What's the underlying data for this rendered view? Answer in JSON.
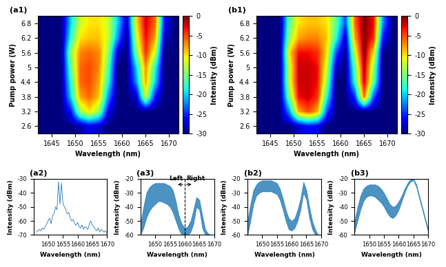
{
  "chart_data": [
    {
      "type": "heatmap",
      "title": "(a1)",
      "x_label": "Wavelength (nm)",
      "y_label": "Pump power (W)",
      "x": [
        1643,
        1645,
        1647,
        1649,
        1651,
        1653,
        1655,
        1657,
        1659,
        1661,
        1663,
        1665,
        1667,
        1669,
        1671
      ],
      "y": [
        2.6,
        3.2,
        3.8,
        4.4,
        5,
        5.6,
        6.2,
        6.8
      ],
      "xlim": [
        1642,
        1672
      ],
      "ylim": [
        2.3,
        7.1
      ],
      "xticks": [
        1645,
        1650,
        1655,
        1660,
        1665,
        1670
      ],
      "yticks": [
        2.6,
        3.2,
        3.8,
        4.4,
        5,
        5.6,
        6.2,
        6.8
      ],
      "cells": [
        [
          -30,
          -30,
          -30,
          -30,
          -29,
          -27,
          -28,
          -30,
          -30,
          -30,
          -30,
          -30,
          -30,
          -30,
          -30
        ],
        [
          -30,
          -30,
          -30,
          -26,
          -14,
          -10,
          -14,
          -27,
          -30,
          -30,
          -30,
          -30,
          -30,
          -30,
          -30
        ],
        [
          -30,
          -30,
          -30,
          -20,
          -8,
          -6,
          -9,
          -22,
          -30,
          -30,
          -28,
          -12,
          -26,
          -30,
          -30
        ],
        [
          -30,
          -30,
          -30,
          -18,
          -6,
          -5,
          -8,
          -18,
          -30,
          -30,
          -22,
          -8,
          -20,
          -30,
          -30
        ],
        [
          -30,
          -30,
          -30,
          -16,
          -6,
          -5,
          -7,
          -16,
          -30,
          -30,
          -20,
          -7,
          -18,
          -30,
          -30
        ],
        [
          -30,
          -30,
          -30,
          -14,
          -7,
          -6,
          -7,
          -14,
          -28,
          -30,
          -15,
          -4,
          -12,
          -30,
          -30
        ],
        [
          -30,
          -30,
          -30,
          -18,
          -10,
          -9,
          -9,
          -12,
          -22,
          -30,
          -12,
          -3,
          -8,
          -28,
          -30
        ],
        [
          -30,
          -30,
          -30,
          -20,
          -12,
          -10,
          -10,
          -12,
          -20,
          -28,
          -10,
          -2,
          -6,
          -26,
          -30
        ]
      ],
      "colorbar": {
        "label": "Intensity (dBm)",
        "range": [
          -30,
          0
        ],
        "ticks": [
          -30,
          -25,
          -20,
          -15,
          -10,
          -5,
          0
        ]
      }
    },
    {
      "type": "heatmap",
      "title": "(b1)",
      "x_label": "Wavelength (nm)",
      "y_label": "Pump power (W)",
      "x": [
        1643,
        1645,
        1647,
        1649,
        1651,
        1653,
        1655,
        1657,
        1659,
        1661,
        1663,
        1665,
        1667,
        1669,
        1671
      ],
      "y": [
        2.6,
        3.2,
        3.8,
        4.4,
        5,
        5.6,
        6.2,
        6.8
      ],
      "xlim": [
        1642,
        1672
      ],
      "ylim": [
        2.3,
        7.1
      ],
      "xticks": [
        1645,
        1650,
        1655,
        1660,
        1665,
        1670
      ],
      "yticks": [
        2.6,
        3.2,
        3.8,
        4.4,
        5,
        5.6,
        6.2,
        6.8
      ],
      "cells": [
        [
          -30,
          -30,
          -30,
          -30,
          -28,
          -26,
          -27,
          -30,
          -30,
          -30,
          -30,
          -30,
          -30,
          -30,
          -30
        ],
        [
          -30,
          -30,
          -30,
          -22,
          -8,
          -5,
          -8,
          -24,
          -30,
          -30,
          -30,
          -30,
          -30,
          -30,
          -30
        ],
        [
          -30,
          -30,
          -30,
          -15,
          -3,
          -2,
          -4,
          -18,
          -30,
          -30,
          -25,
          -6,
          -24,
          -30,
          -30
        ],
        [
          -30,
          -30,
          -30,
          -12,
          -2,
          -2,
          -3,
          -14,
          -30,
          -30,
          -18,
          -2,
          -16,
          -30,
          -30
        ],
        [
          -30,
          -30,
          -30,
          -12,
          -2,
          -2,
          -3,
          -12,
          -28,
          -30,
          -16,
          -1,
          -14,
          -30,
          -30
        ],
        [
          -30,
          -30,
          -30,
          -10,
          -3,
          -3,
          -4,
          -10,
          -24,
          -30,
          -12,
          0,
          -10,
          -30,
          -30
        ],
        [
          -30,
          -30,
          -30,
          -14,
          -8,
          -7,
          -7,
          -9,
          -18,
          -28,
          -8,
          0,
          -4,
          -26,
          -30
        ],
        [
          -30,
          -30,
          -30,
          -16,
          -10,
          -9,
          -9,
          -10,
          -16,
          -24,
          -6,
          0,
          -3,
          -22,
          -30
        ]
      ],
      "colorbar": {
        "label": "Intensity (dBm)",
        "range": [
          -30,
          0
        ],
        "ticks": [
          -30,
          -25,
          -20,
          -15,
          -10,
          -5,
          0
        ]
      }
    },
    {
      "type": "line",
      "title": "(a2)",
      "x_label": "Wavelength (nm)",
      "y_label": "Intensity (dBm)",
      "color": "#1f77b4",
      "x": [
        1646,
        1646.5,
        1647,
        1647.5,
        1648,
        1648.5,
        1649,
        1649.5,
        1650,
        1650.5,
        1651,
        1651.5,
        1652,
        1652.5,
        1653,
        1653.5,
        1654,
        1654.5,
        1655,
        1655.5,
        1656,
        1656.5,
        1657,
        1657.5,
        1658,
        1658.5,
        1659,
        1659.5,
        1660,
        1660.5,
        1661,
        1661.5,
        1662,
        1662.5,
        1663,
        1663.5,
        1664,
        1664.5,
        1665,
        1665.5,
        1666,
        1666.5,
        1667,
        1667.5,
        1668,
        1668.5,
        1669,
        1669.5,
        1670
      ],
      "values": [
        -68,
        -67,
        -66,
        -67,
        -65,
        -66,
        -64,
        -62,
        -60,
        -58,
        -62,
        -56,
        -55,
        -50,
        -52,
        -32,
        -48,
        -33,
        -47,
        -50,
        -52,
        -55,
        -54,
        -58,
        -60,
        -59,
        -62,
        -63,
        -61,
        -64,
        -65,
        -63,
        -66,
        -64,
        -65,
        -66,
        -62,
        -60,
        -63,
        -64,
        -66,
        -67,
        -65,
        -68,
        -66,
        -67,
        -68,
        -67,
        -69
      ],
      "xlim": [
        1645,
        1670
      ],
      "ylim": [
        -70,
        -30
      ],
      "xticks": [
        1650,
        1655,
        1660,
        1665,
        1670
      ],
      "yticks": [
        -70,
        -60,
        -50,
        -40,
        -30
      ]
    },
    {
      "type": "band",
      "title": "(a3)",
      "x_label": "Wavelength (nm)",
      "y_label": "Intensity (dBm)",
      "color": "#1f77b4",
      "x": [
        1645,
        1646,
        1647,
        1648,
        1649,
        1650,
        1651,
        1652,
        1653,
        1654,
        1655,
        1656,
        1657,
        1658,
        1659,
        1660,
        1661,
        1662,
        1663,
        1664,
        1665,
        1666,
        1667,
        1668,
        1669,
        1670
      ],
      "values_low": [
        -60,
        -55,
        -48,
        -43,
        -40,
        -38,
        -36,
        -36,
        -37,
        -38,
        -40,
        -44,
        -50,
        -56,
        -60,
        -60,
        -60,
        -58,
        -52,
        -40,
        -42,
        -55,
        -60,
        -60,
        -60,
        -60
      ],
      "values_high": [
        -52,
        -40,
        -30,
        -26,
        -24,
        -23,
        -23,
        -23,
        -23,
        -24,
        -25,
        -28,
        -36,
        -46,
        -52,
        -55,
        -54,
        -50,
        -42,
        -33,
        -35,
        -46,
        -56,
        -59,
        -60,
        -60
      ],
      "divider": 1660,
      "annotations": [
        "Left",
        "Right"
      ],
      "xlim": [
        1645,
        1670
      ],
      "ylim": [
        -60,
        -20
      ],
      "xticks": [
        1650,
        1655,
        1660,
        1665,
        1670
      ],
      "yticks": [
        -60,
        -50,
        -40,
        -30,
        -20
      ]
    },
    {
      "type": "band",
      "title": "(b2)",
      "x_label": "Wavelength (nm)",
      "y_label": "Intensity (dBm)",
      "color": "#1f77b4",
      "x": [
        1645,
        1646,
        1647,
        1648,
        1649,
        1650,
        1651,
        1652,
        1653,
        1654,
        1655,
        1656,
        1657,
        1658,
        1659,
        1660,
        1661,
        1662,
        1663,
        1664,
        1665,
        1666,
        1667,
        1668,
        1669,
        1670
      ],
      "values_low": [
        -60,
        -50,
        -38,
        -32,
        -30,
        -29,
        -29,
        -29,
        -29,
        -30,
        -31,
        -35,
        -42,
        -50,
        -56,
        -57,
        -55,
        -50,
        -42,
        -30,
        -35,
        -48,
        -56,
        -60,
        -60,
        -60
      ],
      "values_high": [
        -50,
        -38,
        -28,
        -24,
        -22,
        -21,
        -21,
        -21,
        -21,
        -22,
        -23,
        -27,
        -34,
        -42,
        -48,
        -50,
        -48,
        -42,
        -34,
        -22,
        -28,
        -40,
        -50,
        -56,
        -60,
        -60
      ],
      "xlim": [
        1645,
        1670
      ],
      "ylim": [
        -60,
        -20
      ],
      "xticks": [
        1650,
        1655,
        1660,
        1665,
        1670
      ],
      "yticks": [
        -60,
        -50,
        -40,
        -30,
        -20
      ]
    },
    {
      "type": "band",
      "title": "(b3)",
      "x_label": "Wavelength (nm)",
      "y_label": "Intensity (dBm)",
      "color": "#1f77b4",
      "x": [
        1645,
        1646,
        1647,
        1648,
        1649,
        1650,
        1651,
        1652,
        1653,
        1654,
        1655,
        1656,
        1657,
        1658,
        1659,
        1660,
        1661,
        1662,
        1663,
        1664,
        1665,
        1666,
        1667,
        1668,
        1669,
        1670
      ],
      "values_low": [
        -58,
        -50,
        -42,
        -36,
        -33,
        -32,
        -32,
        -33,
        -35,
        -37,
        -40,
        -44,
        -47,
        -48,
        -46,
        -42,
        -36,
        -30,
        -25,
        -22,
        -21,
        -26,
        -34,
        -42,
        -50,
        -58
      ],
      "values_high": [
        -50,
        -40,
        -32,
        -27,
        -25,
        -24,
        -24,
        -24,
        -25,
        -27,
        -30,
        -34,
        -38,
        -40,
        -39,
        -36,
        -32,
        -27,
        -23,
        -20,
        -20,
        -24,
        -32,
        -40,
        -48,
        -56
      ],
      "xlim": [
        1645,
        1670
      ],
      "ylim": [
        -60,
        -20
      ],
      "xticks": [
        1650,
        1655,
        1660,
        1665,
        1670
      ],
      "yticks": [
        -60,
        -50,
        -40,
        -30,
        -20
      ]
    }
  ]
}
